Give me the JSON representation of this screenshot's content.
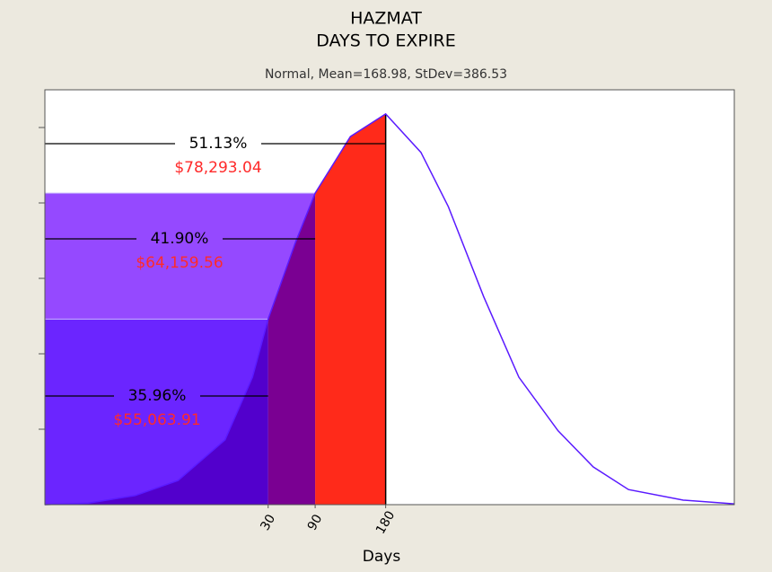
{
  "chart_data": {
    "type": "distribution",
    "title": "HAZMAT",
    "subtitle": "DAYS TO EXPIRE",
    "caption": "Normal, Mean=168.98, StDev=386.53",
    "x_label": "Days",
    "xlim": [
      -255,
      625
    ],
    "xticks": [
      30,
      90,
      180
    ],
    "ylim": [
      0,
      5.5
    ],
    "yticks": [
      1,
      2,
      3,
      4,
      5
    ],
    "curve": {
      "color": "#5a1aff",
      "x": [
        -255,
        -200,
        -140,
        -85,
        -25,
        10,
        30,
        65,
        90,
        135,
        180,
        225,
        260,
        305,
        350,
        400,
        445,
        490,
        560,
        625
      ],
      "y": [
        0,
        0.02,
        0.12,
        0.32,
        0.86,
        1.69,
        2.46,
        3.48,
        4.13,
        4.88,
        5.18,
        4.67,
        3.95,
        2.76,
        1.69,
        0.98,
        0.5,
        0.2,
        0.06,
        0.01
      ]
    },
    "regions": [
      {
        "x_end": 30,
        "value": 35.96,
        "value_label": "35.96%",
        "amount": 55063.91,
        "amount_label": "$55,063.91",
        "rect_color": "#6b25ff",
        "fill_color": "#5200cc"
      },
      {
        "x_end": 90,
        "value": 41.9,
        "value_label": "41.90%",
        "amount": 64159.56,
        "amount_label": "$64,159.56",
        "rect_color": "#9549ff",
        "fill_color": "#7a0092"
      },
      {
        "x_end": 180,
        "value": 51.13,
        "value_label": "51.13%",
        "amount": 78293.04,
        "amount_label": "$78,293.04",
        "fill_color": "#ff2a1a"
      }
    ]
  }
}
